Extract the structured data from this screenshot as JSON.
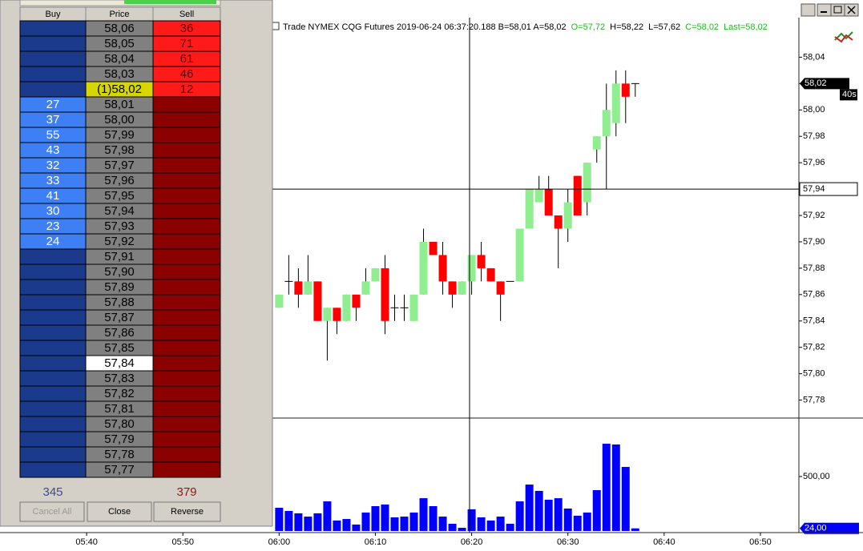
{
  "dom": {
    "headers": [
      "Buy",
      "Price",
      "Sell"
    ],
    "rows": [
      {
        "price": "58,06",
        "sell": 36
      },
      {
        "price": "58,05",
        "sell": 71
      },
      {
        "price": "58,04",
        "sell": 61
      },
      {
        "price": "58,03",
        "sell": 46
      },
      {
        "price": "(1)58,02",
        "sell": 12
      },
      {
        "price": "58,01",
        "buy": 27
      },
      {
        "price": "58,00",
        "buy": 37
      },
      {
        "price": "57,99",
        "buy": 55
      },
      {
        "price": "57,98",
        "buy": 43
      },
      {
        "price": "57,97",
        "buy": 32
      },
      {
        "price": "57,96",
        "buy": 33
      },
      {
        "price": "57,95",
        "buy": 41
      },
      {
        "price": "57,94",
        "buy": 30
      },
      {
        "price": "57,93",
        "buy": 23
      },
      {
        "price": "57,92",
        "buy": 24
      },
      {
        "price": "57,91"
      },
      {
        "price": "57,90"
      },
      {
        "price": "57,89"
      },
      {
        "price": "57,88"
      },
      {
        "price": "57,87"
      },
      {
        "price": "57,86"
      },
      {
        "price": "57,85"
      },
      {
        "price": "57,84"
      },
      {
        "price": "57,83"
      },
      {
        "price": "57,82"
      },
      {
        "price": "57,81"
      },
      {
        "price": "57,80"
      },
      {
        "price": "57,79"
      },
      {
        "price": "57,78"
      },
      {
        "price": "57,77"
      }
    ],
    "total_buy": 345,
    "total_sell": 379,
    "buttons": [
      "Cancel All",
      "Close",
      "Reverse"
    ]
  },
  "chart_data": [
    {
      "type": "candlestick",
      "title_parts": [
        {
          "text": "Trade  NYMEX  CQG  Futures  2019-06-24  06:37:20.188  B=58,01  A=58,02",
          "color": "#000000"
        },
        {
          "text": "O=57,72",
          "color": "#22bb22"
        },
        {
          "text": "H=58,22",
          "color": "#000000"
        },
        {
          "text": "L=57,62",
          "color": "#000000"
        },
        {
          "text": "C=58,02",
          "color": "#22bb22"
        },
        {
          "text": "Last=58,02",
          "color": "#22bb22"
        }
      ],
      "x": [
        "06:00",
        "06:01",
        "06:02",
        "06:03",
        "06:04",
        "06:05",
        "06:06",
        "06:07",
        "06:08",
        "06:09",
        "06:10",
        "06:11",
        "06:12",
        "06:13",
        "06:14",
        "06:15",
        "06:16",
        "06:17",
        "06:18",
        "06:19",
        "06:20",
        "06:21",
        "06:22",
        "06:23",
        "06:24",
        "06:25",
        "06:26",
        "06:27",
        "06:28",
        "06:29",
        "06:30",
        "06:31",
        "06:32",
        "06:33",
        "06:34",
        "06:35",
        "06:36",
        "06:37"
      ],
      "open": [
        57.85,
        57.87,
        57.87,
        57.86,
        57.87,
        57.84,
        57.85,
        57.84,
        57.86,
        57.86,
        57.87,
        57.88,
        57.85,
        57.85,
        57.84,
        57.86,
        57.9,
        57.89,
        57.87,
        57.86,
        57.87,
        57.89,
        57.88,
        57.87,
        57.87,
        57.87,
        57.91,
        57.93,
        57.94,
        57.92,
        57.91,
        57.95,
        57.93,
        57.97,
        57.98,
        57.99,
        58.02,
        58.02
      ],
      "high": [
        57.86,
        57.89,
        57.88,
        57.89,
        57.87,
        57.85,
        57.85,
        57.86,
        57.86,
        57.88,
        57.88,
        57.89,
        57.86,
        57.86,
        57.86,
        57.91,
        57.9,
        57.9,
        57.87,
        57.87,
        57.89,
        57.9,
        57.88,
        57.87,
        57.87,
        57.91,
        57.94,
        57.95,
        57.95,
        57.92,
        57.94,
        57.95,
        57.96,
        57.98,
        58.02,
        58.03,
        58.03,
        58.02
      ],
      "low": [
        57.85,
        57.86,
        57.85,
        57.86,
        57.84,
        57.81,
        57.83,
        57.84,
        57.84,
        57.86,
        57.87,
        57.83,
        57.84,
        57.84,
        57.84,
        57.86,
        57.89,
        57.86,
        57.85,
        57.86,
        57.86,
        57.87,
        57.87,
        57.84,
        57.87,
        57.87,
        57.91,
        57.93,
        57.92,
        57.88,
        57.9,
        57.92,
        57.92,
        57.96,
        57.94,
        57.98,
        57.99,
        58.01
      ],
      "close": [
        57.86,
        57.87,
        57.86,
        57.87,
        57.84,
        57.85,
        57.84,
        57.86,
        57.85,
        57.87,
        57.88,
        57.84,
        57.85,
        57.85,
        57.86,
        57.9,
        57.89,
        57.87,
        57.86,
        57.87,
        57.89,
        57.88,
        57.87,
        57.86,
        57.87,
        57.91,
        57.94,
        57.94,
        57.92,
        57.91,
        57.93,
        57.92,
        57.96,
        57.98,
        58.0,
        58.02,
        58.01,
        58.02
      ],
      "up_color": "#90ee90",
      "down_color": "#ff0000",
      "xlim": [
        "05:31",
        "06:54"
      ],
      "ylim": [
        57.767,
        58.07
      ],
      "yticks": [
        {
          "value": 57.78,
          "label": "57,78"
        },
        {
          "value": 57.8,
          "label": "57,80"
        },
        {
          "value": 57.82,
          "label": "57,82"
        },
        {
          "value": 57.84,
          "label": "57,84"
        },
        {
          "value": 57.86,
          "label": "57,86"
        },
        {
          "value": 57.88,
          "label": "57,88"
        },
        {
          "value": 57.9,
          "label": "57,90"
        },
        {
          "value": 57.92,
          "label": "57,92"
        },
        {
          "value": 57.94,
          "label": "57,94"
        },
        {
          "value": 57.96,
          "label": "57,96"
        },
        {
          "value": 57.98,
          "label": "57,98"
        },
        {
          "value": 58.0,
          "label": "58,00"
        },
        {
          "value": 58.02,
          "label": "58,02"
        },
        {
          "value": 58.04,
          "label": "58,04"
        }
      ],
      "last_label": {
        "value": 58.02,
        "label": "58,02"
      },
      "timer_label": "40s",
      "crosshair": {
        "value": 57.94,
        "label": "57,94"
      }
    },
    {
      "type": "bar",
      "x": [
        "06:00",
        "06:01",
        "06:02",
        "06:03",
        "06:04",
        "06:05",
        "06:06",
        "06:07",
        "06:08",
        "06:09",
        "06:10",
        "06:11",
        "06:12",
        "06:13",
        "06:14",
        "06:15",
        "06:16",
        "06:17",
        "06:18",
        "06:19",
        "06:20",
        "06:21",
        "06:22",
        "06:23",
        "06:24",
        "06:25",
        "06:26",
        "06:27",
        "06:28",
        "06:29",
        "06:30",
        "06:31",
        "06:32",
        "06:33",
        "06:34",
        "06:35",
        "06:36",
        "06:37"
      ],
      "values": [
        213,
        184,
        162,
        132,
        162,
        272,
        96,
        110,
        59,
        169,
        228,
        243,
        125,
        132,
        169,
        301,
        228,
        132,
        66,
        29,
        199,
        125,
        96,
        132,
        66,
        272,
        426,
        368,
        287,
        301,
        206,
        140,
        169,
        375,
        801,
        794,
        588,
        24
      ],
      "color": "#0000ff",
      "xlim": [
        "05:31",
        "06:54"
      ],
      "xticks": [
        "05:40",
        "05:50",
        "06:00",
        "06:10",
        "06:20",
        "06:30",
        "06:40",
        "06:50"
      ],
      "ylim": [
        0,
        1022
      ],
      "yticks": [
        {
          "value": 500,
          "label": "500,00"
        }
      ],
      "last_label": {
        "value": 24,
        "label": "24,00"
      }
    }
  ]
}
